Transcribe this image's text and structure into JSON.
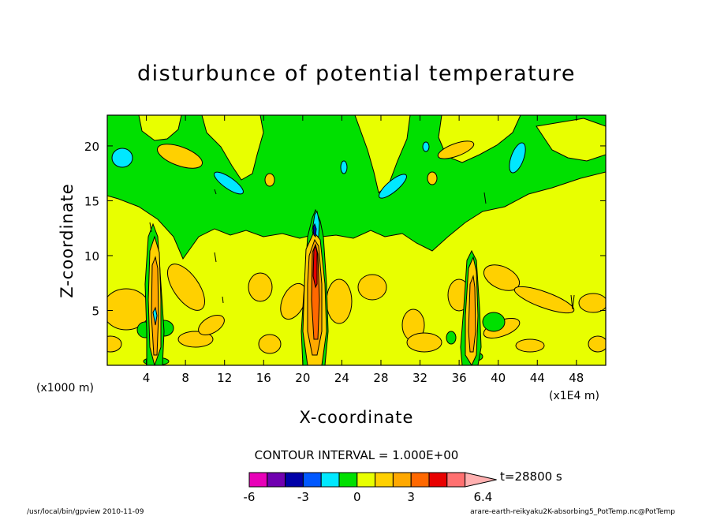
{
  "chart_data": {
    "type": "heatmap",
    "title": "disturbunce of potential temperature",
    "xlabel": "X-coordinate",
    "ylabel": "Z-coordinate",
    "x_unit_left": "(x1000 m)",
    "x_unit_right": "(x1E4 m)",
    "xlim": [
      0,
      51
    ],
    "ylim": [
      0,
      22.8
    ],
    "x_ticks": [
      4,
      8,
      12,
      16,
      20,
      24,
      28,
      32,
      36,
      40,
      44,
      48
    ],
    "x_tick_labels": [
      "4",
      "8",
      "12",
      "16",
      "20",
      "24",
      "28",
      "32",
      "36",
      "40",
      "44",
      "48"
    ],
    "y_ticks": [
      5,
      10,
      15,
      20
    ],
    "y_tick_labels": [
      "5",
      "10",
      "15",
      "20"
    ],
    "contour_interval_text": "CONTOUR INTERVAL = 1.000E+00",
    "time_label": "t=28800 s",
    "colorbar": {
      "levels": [
        -6,
        -5,
        -4,
        -3,
        -2,
        -1,
        0,
        1,
        2,
        3,
        4,
        5,
        6,
        6.4
      ],
      "colors": [
        "#e800b8",
        "#7000b0",
        "#0000a8",
        "#0058ff",
        "#00e8ff",
        "#00e000",
        "#e8ff00",
        "#ffd000",
        "#ffa800",
        "#ff6800",
        "#e80000",
        "#ff7070",
        "#ffb0b0"
      ],
      "labels": [
        "-6",
        "-3",
        "0",
        "3",
        "6.4"
      ],
      "label_values": [
        -6,
        -3,
        0,
        3,
        6.4
      ]
    },
    "background_level": "0 to 1",
    "features": [
      {
        "name": "upper-green-band",
        "level": "-1 to 0",
        "z_range": [
          12,
          22.8
        ]
      },
      {
        "name": "convective-column-x5",
        "x": 4.8,
        "z_top": 12.5
      },
      {
        "name": "convective-column-x21",
        "x": 21.3,
        "z_top": 14
      },
      {
        "name": "convective-column-x37",
        "x": 37.5,
        "z_top": 11
      }
    ]
  },
  "footer": {
    "left": "/usr/local/bin/gpview  2010-11-09",
    "right": "arare-earth-reikyaku2K-absorbing5_PotTemp.nc@PotTemp"
  }
}
